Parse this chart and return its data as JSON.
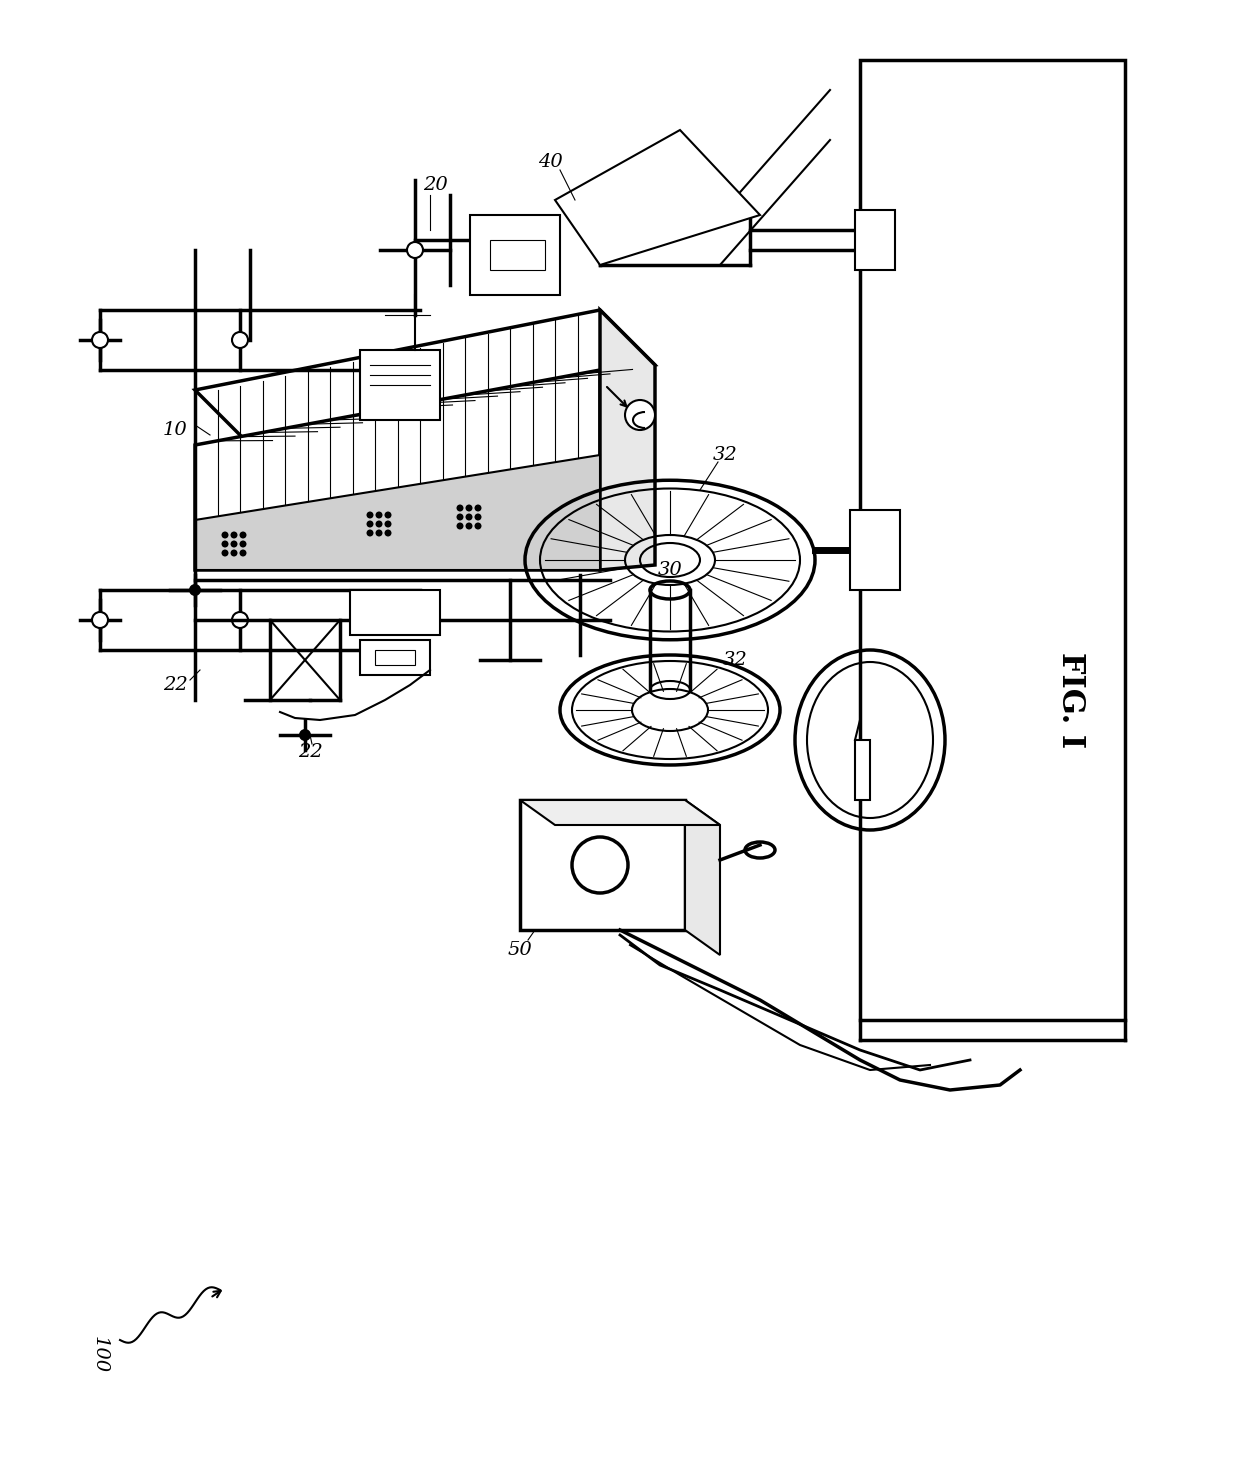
{
  "bg_color": "#ffffff",
  "line_color": "#000000",
  "fig_label": "FIG. I",
  "lw": 1.5,
  "lw_thick": 2.5,
  "lw_thin": 0.8
}
